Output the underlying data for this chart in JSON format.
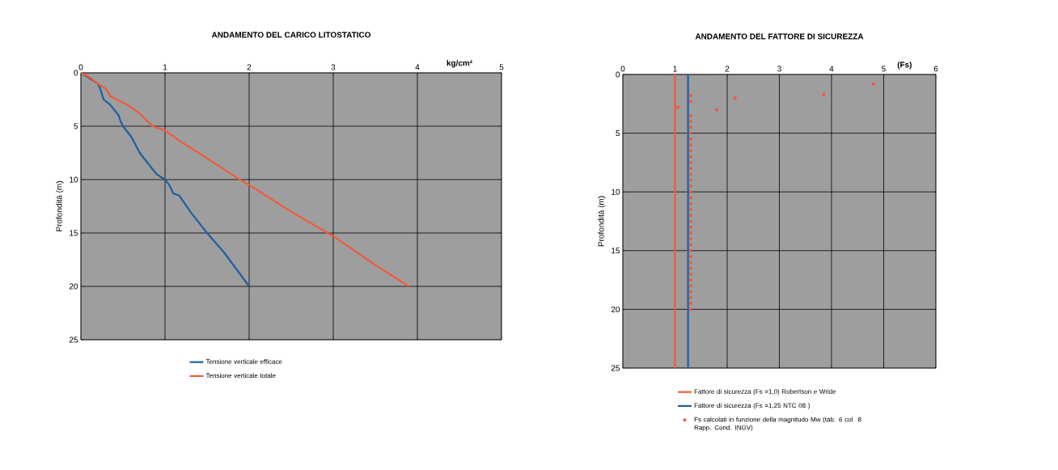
{
  "chart_data": [
    {
      "type": "line",
      "title": "ANDAMENTO  DEL CARICO LITOSTATICO",
      "xlabel": "kg/cm²",
      "ylabel": "Profondità (m)",
      "xlim": [
        0,
        5
      ],
      "xticks": [
        0,
        1,
        2,
        3,
        4,
        5
      ],
      "ylim": [
        25,
        0
      ],
      "yticks": [
        0,
        5,
        10,
        15,
        20,
        25
      ],
      "grid": true,
      "legend": "bottom",
      "marker": "none",
      "series": [
        {
          "name": "Tensione verticale efficace",
          "color": "#1f5fa0",
          "x": [
            0,
            0.1,
            0.2,
            0.23,
            0.27,
            0.35,
            0.45,
            0.47,
            0.5,
            0.6,
            0.7,
            0.8,
            0.9,
            1,
            1.05,
            1.1,
            1.17,
            1.3,
            1.5,
            1.7,
            2
          ],
          "values": [
            0,
            0.5,
            1,
            1.5,
            2.5,
            3,
            4,
            4.5,
            5,
            6,
            7.5,
            8.5,
            9.5,
            10,
            10.5,
            11.3,
            11.5,
            13,
            15,
            16.8,
            20
          ]
        },
        {
          "name": "Tensione verticale totale",
          "color": "#f05a3c",
          "x": [
            0,
            0.1,
            0.2,
            0.3,
            0.35,
            0.55,
            0.7,
            0.85,
            1,
            1.2,
            1.5,
            1.85,
            2,
            2.2,
            2.5,
            3,
            3.5,
            3.9
          ],
          "values": [
            0,
            0.4,
            1,
            1.5,
            2.2,
            3,
            3.8,
            5,
            5.4,
            6.5,
            8,
            9.8,
            10.5,
            11.5,
            13,
            15.3,
            18,
            20
          ]
        }
      ]
    },
    {
      "type": "line",
      "title": "ANDAMENTO  DEL FATTORE  DI SICUREZZA",
      "xlabel": "(Fs)",
      "ylabel": "Profondità (m)",
      "xlim": [
        0,
        6
      ],
      "xticks": [
        0,
        1,
        2,
        3,
        4,
        5,
        6
      ],
      "ylim": [
        25,
        0
      ],
      "yticks": [
        0,
        5,
        10,
        15,
        20,
        25
      ],
      "grid": true,
      "legend": "bottom",
      "series": [
        {
          "name": "Fattore di sicurezza (Fs =1,0) Robertson e Wride",
          "color": "#f05a3c",
          "x": [
            1,
            1
          ],
          "values": [
            0,
            25
          ]
        },
        {
          "name": "Fattore di sicurezza (Fs =1,25  NTC 08 )",
          "color": "#1f5fa0",
          "x": [
            1.25,
            1.25
          ],
          "values": [
            0,
            25
          ]
        },
        {
          "name": "Fs calcolati in funzione della magnitudo Mw (tab. 6 col. 8 Rapp. Cond. INGV)",
          "type": "scatter",
          "marker": "square",
          "color": "#f05a3c",
          "x": [
            4.8,
            3.85,
            2.15,
            1.8,
            1.3,
            1.3,
            1.05,
            1.3,
            1.3,
            1.3,
            1.3,
            1.3,
            1.3,
            1.3,
            1.3,
            1.3,
            1.3,
            1.3,
            1.3,
            1.3,
            1.3,
            1.3,
            1.3,
            1.3,
            1.3,
            1.3,
            1.3,
            1.3,
            1.3,
            1.3,
            1.3,
            1.3,
            1.3,
            1.3,
            1.3,
            1.3,
            1.3,
            1.3,
            1.3,
            1.3,
            1.3
          ],
          "values": [
            0.8,
            1.7,
            2,
            3,
            1.8,
            2.3,
            2.8,
            3.5,
            4,
            4.5,
            5,
            5.5,
            6,
            6.5,
            7,
            7.5,
            8,
            8.5,
            9,
            9.5,
            10,
            10.5,
            11,
            11.5,
            12,
            12.5,
            13,
            13.5,
            14,
            14.5,
            15,
            15.5,
            16,
            16.5,
            17,
            17.5,
            18,
            18.5,
            19,
            19.5,
            20
          ]
        }
      ]
    }
  ]
}
